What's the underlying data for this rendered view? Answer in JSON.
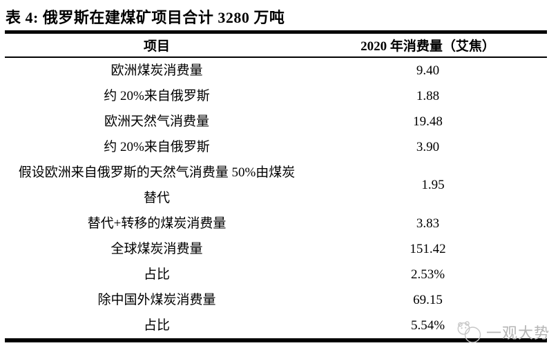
{
  "title": "表 4: 俄罗斯在建煤矿项目合计 3280 万吨",
  "table": {
    "columns": [
      "项目",
      "2020 年消费量（艾焦）"
    ],
    "rows": [
      {
        "item": "欧洲煤炭消费量",
        "value": "9.40"
      },
      {
        "item": "约 20%来自俄罗斯",
        "value": "1.88"
      },
      {
        "item": "欧洲天然气消费量",
        "value": "19.48"
      },
      {
        "item": "约 20%来自俄罗斯",
        "value": "3.90"
      },
      {
        "item": "假设欧洲来自俄罗斯的天然气消费量 50%由煤炭替代",
        "value": "1.95"
      },
      {
        "item": "替代+转移的煤炭消费量",
        "value": "3.83"
      },
      {
        "item": "全球煤炭消费量",
        "value": "151.42"
      },
      {
        "item": "占比",
        "value": "2.53%"
      },
      {
        "item": "除中国外煤炭消费量",
        "value": "69.15"
      },
      {
        "item": "占比",
        "value": "5.54%"
      }
    ]
  },
  "watermark": {
    "label": "一观大势"
  },
  "colors": {
    "text": "#000000",
    "rule": "#000000",
    "watermark": "#b5b5b5"
  }
}
